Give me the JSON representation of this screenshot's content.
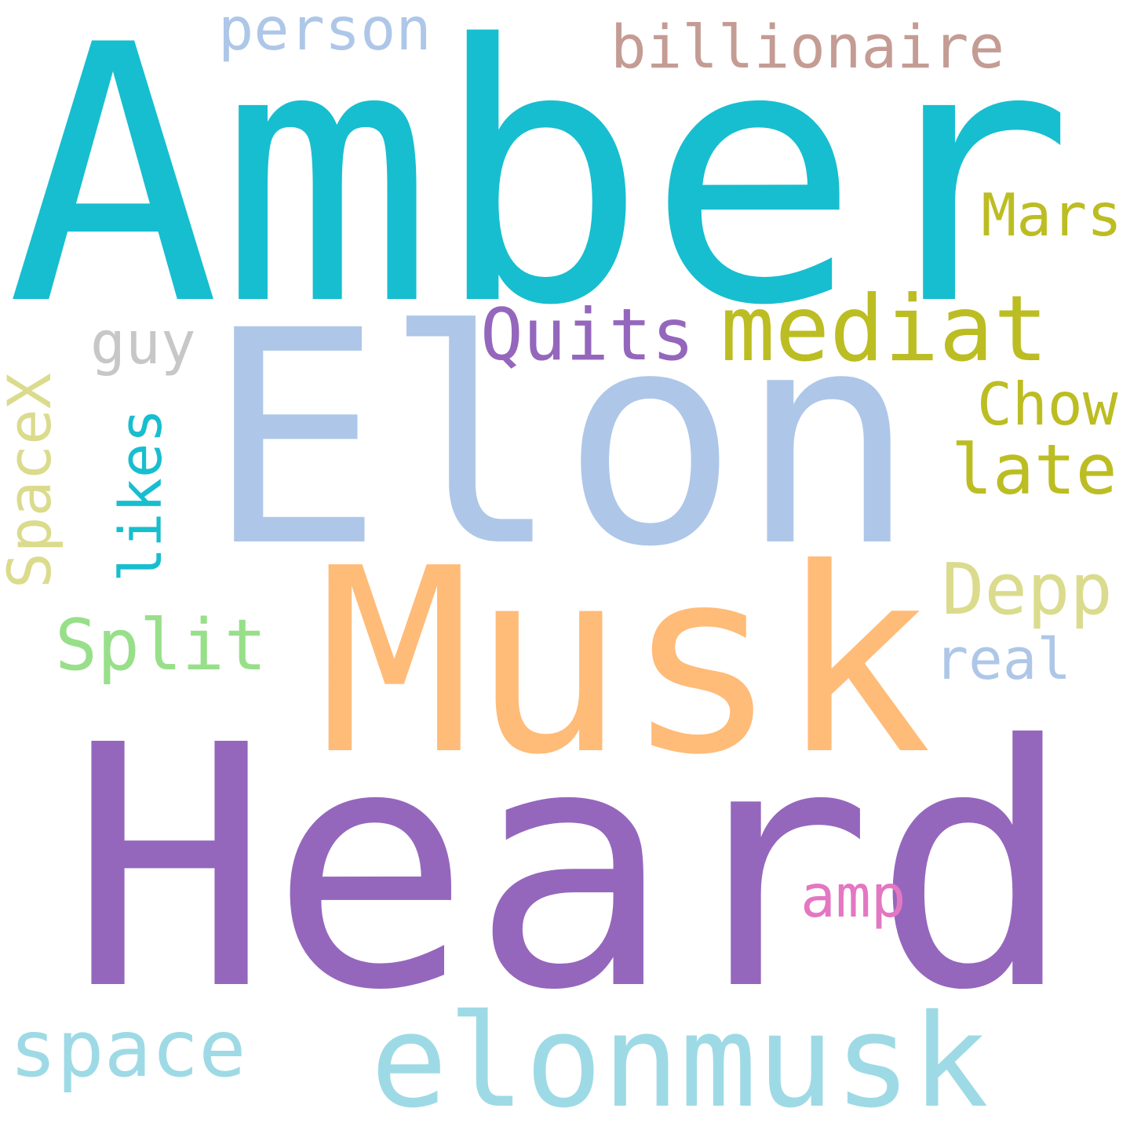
{
  "words": [
    {
      "id": "amber",
      "text": "Amber",
      "color": "#17becf",
      "orientation": "horizontal"
    },
    {
      "id": "elon",
      "text": "Elon",
      "color": "#aec7e8",
      "orientation": "horizontal"
    },
    {
      "id": "musk",
      "text": "Musk",
      "color": "#ffbb78",
      "orientation": "horizontal"
    },
    {
      "id": "heard",
      "text": "Heard",
      "color": "#9467bd",
      "orientation": "horizontal"
    },
    {
      "id": "elonmusk",
      "text": "elonmusk",
      "color": "#9edae5",
      "orientation": "horizontal"
    },
    {
      "id": "space",
      "text": "space",
      "color": "#9edae5",
      "orientation": "horizontal"
    },
    {
      "id": "person",
      "text": "person",
      "color": "#aec7e8",
      "orientation": "horizontal"
    },
    {
      "id": "billionaire",
      "text": "billionaire",
      "color": "#c49c94",
      "orientation": "horizontal"
    },
    {
      "id": "mars",
      "text": "Mars",
      "color": "#bcbd22",
      "orientation": "horizontal"
    },
    {
      "id": "mediat",
      "text": "mediat",
      "color": "#bcbd22",
      "orientation": "horizontal"
    },
    {
      "id": "quits",
      "text": "Quits",
      "color": "#9467bd",
      "orientation": "horizontal"
    },
    {
      "id": "guy",
      "text": "guy",
      "color": "#c7c7c7",
      "orientation": "horizontal"
    },
    {
      "id": "chow",
      "text": "Chow",
      "color": "#bcbd22",
      "orientation": "horizontal"
    },
    {
      "id": "late",
      "text": "late",
      "color": "#bcbd22",
      "orientation": "horizontal"
    },
    {
      "id": "depp",
      "text": "Depp",
      "color": "#dbdb8d",
      "orientation": "horizontal"
    },
    {
      "id": "real",
      "text": "real",
      "color": "#aec7e8",
      "orientation": "horizontal"
    },
    {
      "id": "split",
      "text": "Split",
      "color": "#98df8a",
      "orientation": "horizontal"
    },
    {
      "id": "amp",
      "text": "amp",
      "color": "#e377c2",
      "orientation": "horizontal"
    },
    {
      "id": "spacex",
      "text": "SpaceX",
      "color": "#dbdb8d",
      "orientation": "vertical"
    },
    {
      "id": "likes",
      "text": "likes",
      "color": "#17becf",
      "orientation": "vertical"
    }
  ]
}
